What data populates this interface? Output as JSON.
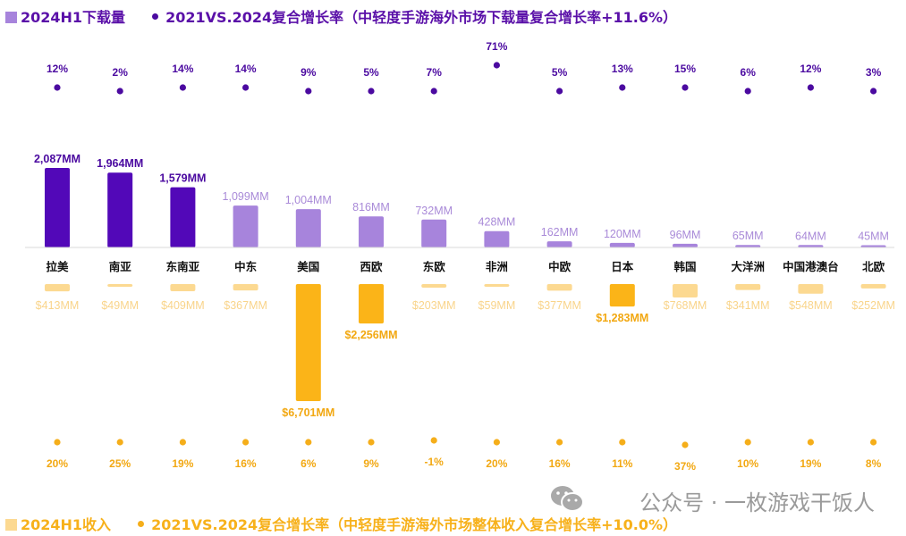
{
  "legend_top": {
    "bar_label": "2024H1下载量",
    "dot_label": "2021VS.2024复合增长率（中轻度手游海外市场下载量复合增长率+11.6%）"
  },
  "legend_bottom": {
    "bar_label": "2024H1收入",
    "dot_label": "2021VS.2024复合增长率（中轻度手游海外市场整体收入复合增长率+10.0%）"
  },
  "watermark": "公众号 · 一枚游戏干饭人",
  "colors": {
    "download_dark": "#5208b8",
    "download_light": "#a784dc",
    "revenue_dark": "#fbb418",
    "revenue_light": "#fcd991",
    "download_text_dark": "#4b0aa0",
    "download_text_light": "#a98ad8",
    "revenue_text_dark": "#f2a812",
    "revenue_text_light": "#f9d48a",
    "download_dot": "#4b0aa0",
    "revenue_dot": "#f5ae1a"
  },
  "chart_data": {
    "type": "bar",
    "categories": [
      "拉美",
      "南亚",
      "东南亚",
      "中东",
      "美国",
      "西欧",
      "东欧",
      "非洲",
      "中欧",
      "日本",
      "韩国",
      "大洋洲",
      "中国港澳台",
      "北欧"
    ],
    "series": [
      {
        "name": "2024H1下载量",
        "unit": "MM",
        "values": [
          2087,
          1964,
          1579,
          1099,
          1004,
          816,
          732,
          428,
          162,
          120,
          96,
          65,
          64,
          45
        ],
        "labels": [
          "2,087MM",
          "1,964MM",
          "1,579MM",
          "1,099MM",
          "1,004MM",
          "816MM",
          "732MM",
          "428MM",
          "162MM",
          "120MM",
          "96MM",
          "65MM",
          "64MM",
          "45MM"
        ],
        "highlight": [
          true,
          true,
          true,
          false,
          false,
          false,
          false,
          false,
          false,
          false,
          false,
          false,
          false,
          false
        ]
      },
      {
        "name": "2021VS.2024复合增长率",
        "related": "2024H1下载量",
        "values": [
          12,
          2,
          14,
          14,
          9,
          5,
          7,
          71,
          5,
          13,
          15,
          6,
          12,
          3
        ],
        "labels": [
          "12%",
          "2%",
          "14%",
          "14%",
          "9%",
          "5%",
          "7%",
          "71%",
          "5%",
          "13%",
          "15%",
          "6%",
          "12%",
          "3%"
        ]
      },
      {
        "name": "2024H1收入",
        "unit": "$MM",
        "values": [
          413,
          49,
          409,
          367,
          6701,
          2256,
          203,
          59,
          377,
          1283,
          768,
          341,
          548,
          252
        ],
        "labels": [
          "$413MM",
          "$49MM",
          "$409MM",
          "$367MM",
          "$6,701MM",
          "$2,256MM",
          "$203MM",
          "$59MM",
          "$377MM",
          "$1,283MM",
          "$768MM",
          "$341MM",
          "$548MM",
          "$252MM"
        ],
        "highlight": [
          false,
          false,
          false,
          false,
          true,
          true,
          false,
          false,
          false,
          true,
          false,
          false,
          false,
          false
        ]
      },
      {
        "name": "2021VS.2024复合增长率",
        "related": "2024H1收入",
        "values": [
          20,
          25,
          19,
          16,
          6,
          9,
          -1,
          20,
          16,
          11,
          37,
          10,
          19,
          8
        ],
        "labels": [
          "20%",
          "25%",
          "19%",
          "16%",
          "6%",
          "9%",
          "-1%",
          "20%",
          "16%",
          "11%",
          "37%",
          "10%",
          "19%",
          "8%"
        ]
      }
    ]
  }
}
